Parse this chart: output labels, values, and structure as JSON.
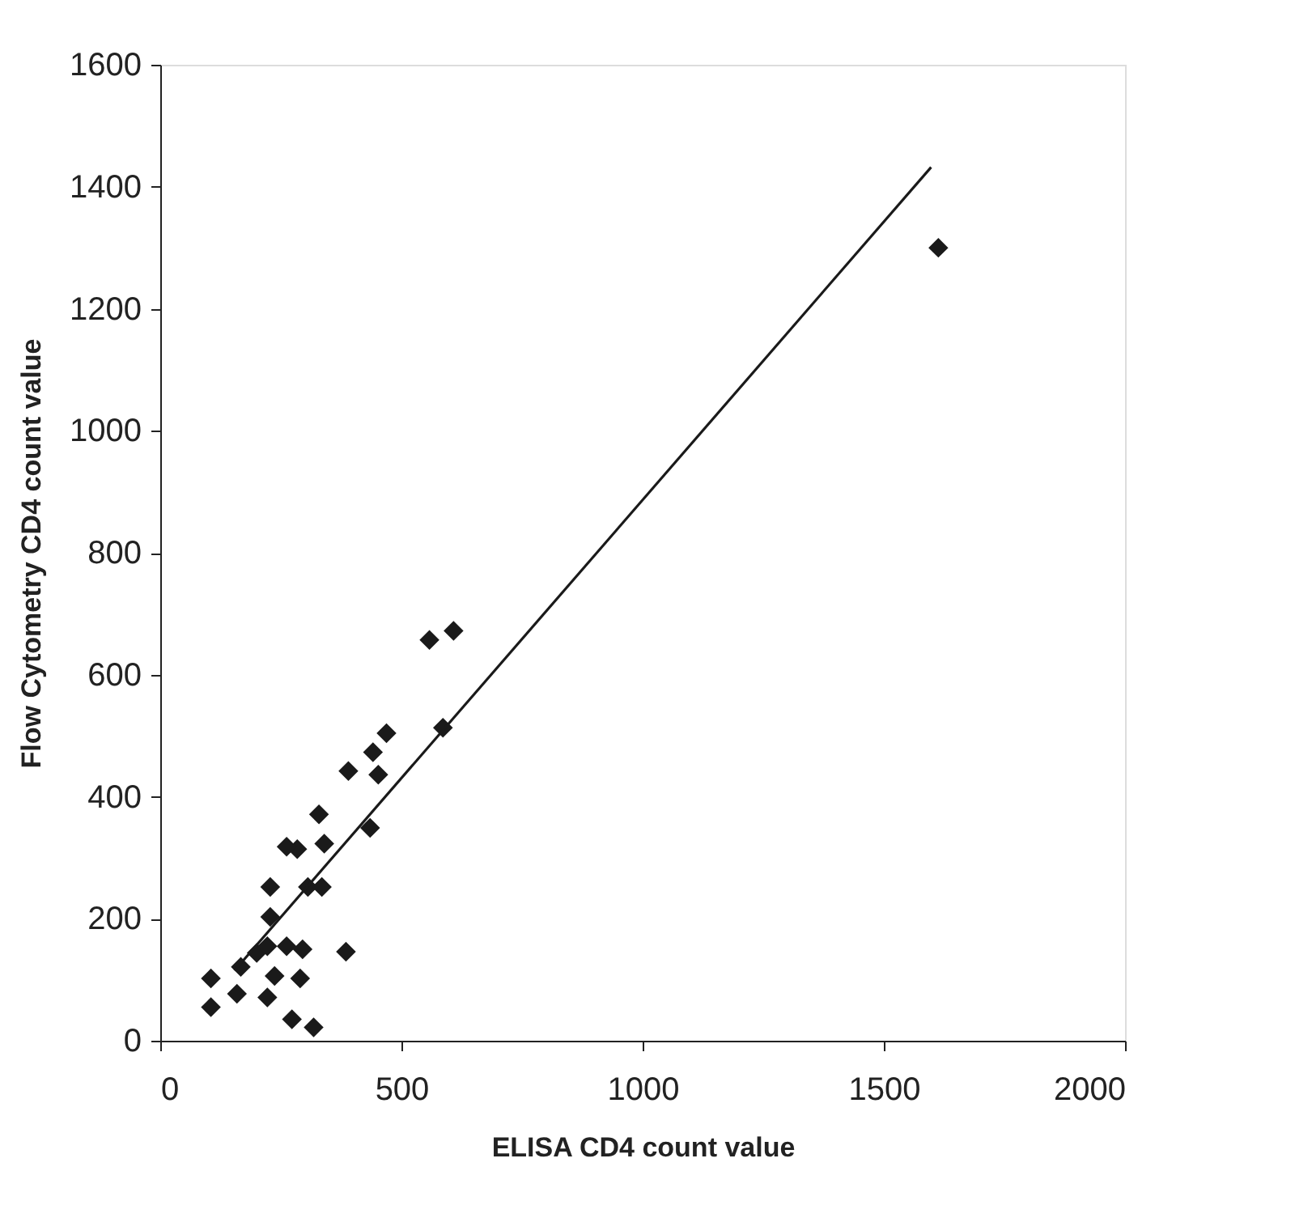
{
  "chart_data": {
    "type": "scatter",
    "xlabel": "ELISA CD4 count value",
    "ylabel": "Flow Cytometry CD4 count value",
    "xlim": [
      0,
      2000
    ],
    "ylim": [
      0,
      1600
    ],
    "xticks": [
      0,
      500,
      1000,
      1500,
      2000
    ],
    "yticks": [
      0,
      200,
      400,
      600,
      800,
      1000,
      1200,
      1400,
      1600
    ],
    "grid": false,
    "marker": "diamond",
    "series": [
      {
        "color": "#1a1a1a",
        "x": [
          105,
          105,
          159,
          167,
          200,
          228,
          228,
          222,
          237,
          222,
          262,
          284,
          295,
          290,
          273,
          318,
          306,
          335,
          329,
          340,
          262,
          385,
          390,
          435,
          452,
          441,
          469,
          586,
          558,
          608,
          1613
        ],
        "values": [
          102,
          55,
          77,
          121,
          144,
          252,
          203,
          155,
          106,
          71,
          155,
          314,
          150,
          102,
          35,
          22,
          252,
          252,
          371,
          323,
          318,
          146,
          442,
          349,
          436,
          473,
          504,
          513,
          657,
          672,
          1300
        ]
      },
      {
        "type": "line",
        "color": "#1a1a1a",
        "line_style": "solid",
        "marker": "none",
        "x": [
          154,
          1598
        ],
        "values": [
          115,
          1432
        ]
      }
    ]
  }
}
